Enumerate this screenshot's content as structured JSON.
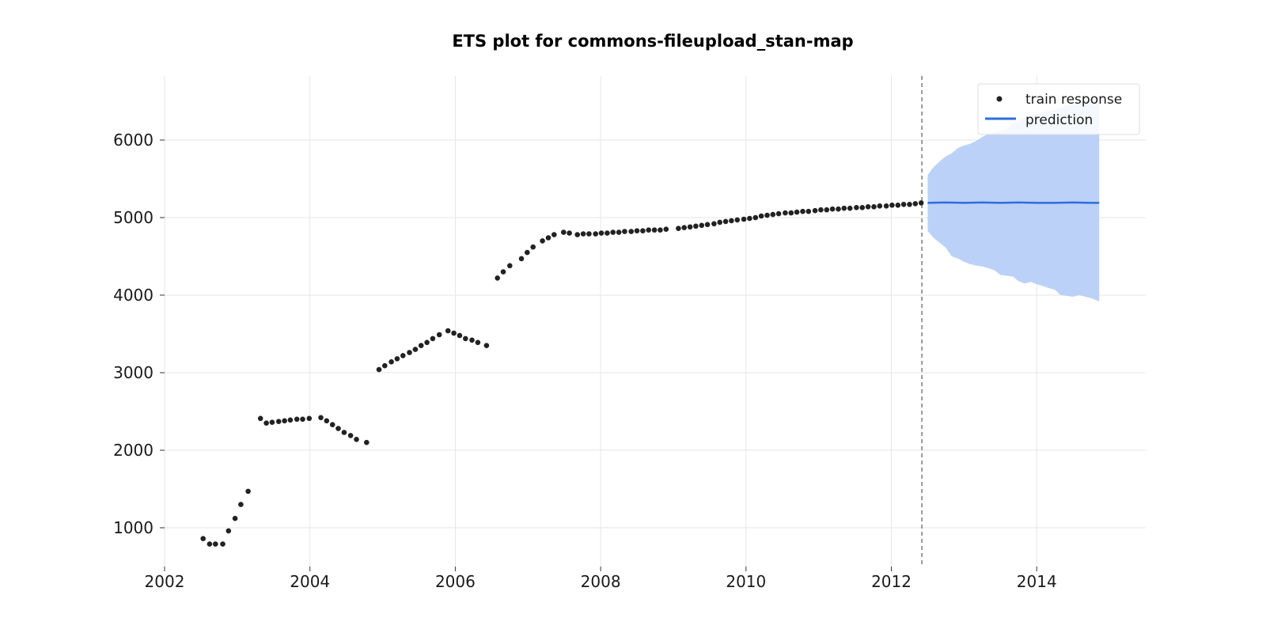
{
  "chart_data": {
    "type": "scatter",
    "title": "ETS plot for commons-fileupload_stan-map",
    "xlabel": "",
    "ylabel": "",
    "xlim": [
      2002.0,
      2015.5
    ],
    "ylim": [
      500,
      6800
    ],
    "x_ticks": [
      "2002",
      "2004",
      "2006",
      "2008",
      "2010",
      "2012",
      "2014"
    ],
    "y_ticks": [
      "1000",
      "2000",
      "3000",
      "4000",
      "5000",
      "6000"
    ],
    "grid": true,
    "legend_position": "top-right",
    "train_end": 2012.42,
    "series": [
      {
        "name": "train response",
        "kind": "scatter",
        "color": "#222222",
        "points": [
          [
            2002.53,
            860
          ],
          [
            2002.62,
            790
          ],
          [
            2002.7,
            790
          ],
          [
            2002.8,
            790
          ],
          [
            2002.88,
            960
          ],
          [
            2002.97,
            1120
          ],
          [
            2003.05,
            1300
          ],
          [
            2003.15,
            1470
          ],
          [
            2003.32,
            2410
          ],
          [
            2003.4,
            2350
          ],
          [
            2003.48,
            2360
          ],
          [
            2003.57,
            2370
          ],
          [
            2003.65,
            2380
          ],
          [
            2003.73,
            2390
          ],
          [
            2003.82,
            2400
          ],
          [
            2003.9,
            2400
          ],
          [
            2003.99,
            2410
          ],
          [
            2004.15,
            2420
          ],
          [
            2004.23,
            2380
          ],
          [
            2004.31,
            2330
          ],
          [
            2004.39,
            2280
          ],
          [
            2004.47,
            2230
          ],
          [
            2004.56,
            2190
          ],
          [
            2004.64,
            2140
          ],
          [
            2004.78,
            2100
          ],
          [
            2004.95,
            3040
          ],
          [
            2005.03,
            3090
          ],
          [
            2005.12,
            3140
          ],
          [
            2005.2,
            3180
          ],
          [
            2005.28,
            3220
          ],
          [
            2005.37,
            3260
          ],
          [
            2005.45,
            3300
          ],
          [
            2005.53,
            3350
          ],
          [
            2005.61,
            3390
          ],
          [
            2005.69,
            3440
          ],
          [
            2005.78,
            3490
          ],
          [
            2005.9,
            3540
          ],
          [
            2005.98,
            3510
          ],
          [
            2006.06,
            3480
          ],
          [
            2006.14,
            3440
          ],
          [
            2006.23,
            3420
          ],
          [
            2006.31,
            3390
          ],
          [
            2006.43,
            3350
          ],
          [
            2006.58,
            4220
          ],
          [
            2006.66,
            4300
          ],
          [
            2006.75,
            4380
          ],
          [
            2006.91,
            4470
          ],
          [
            2006.99,
            4550
          ],
          [
            2007.07,
            4620
          ],
          [
            2007.2,
            4700
          ],
          [
            2007.28,
            4740
          ],
          [
            2007.36,
            4780
          ],
          [
            2007.49,
            4810
          ],
          [
            2007.57,
            4800
          ],
          [
            2007.68,
            4780
          ],
          [
            2007.76,
            4790
          ],
          [
            2007.84,
            4790
          ],
          [
            2007.93,
            4790
          ],
          [
            2008.01,
            4800
          ],
          [
            2008.09,
            4800
          ],
          [
            2008.17,
            4810
          ],
          [
            2008.25,
            4810
          ],
          [
            2008.33,
            4820
          ],
          [
            2008.42,
            4820
          ],
          [
            2008.5,
            4830
          ],
          [
            2008.58,
            4830
          ],
          [
            2008.66,
            4840
          ],
          [
            2008.74,
            4840
          ],
          [
            2008.82,
            4840
          ],
          [
            2008.9,
            4850
          ],
          [
            2009.07,
            4860
          ],
          [
            2009.15,
            4870
          ],
          [
            2009.23,
            4880
          ],
          [
            2009.31,
            4890
          ],
          [
            2009.39,
            4900
          ],
          [
            2009.47,
            4910
          ],
          [
            2009.56,
            4920
          ],
          [
            2009.64,
            4940
          ],
          [
            2009.72,
            4950
          ],
          [
            2009.8,
            4960
          ],
          [
            2009.88,
            4970
          ],
          [
            2009.97,
            4980
          ],
          [
            2010.05,
            4990
          ],
          [
            2010.13,
            5000
          ],
          [
            2010.21,
            5020
          ],
          [
            2010.29,
            5030
          ],
          [
            2010.37,
            5040
          ],
          [
            2010.45,
            5050
          ],
          [
            2010.54,
            5060
          ],
          [
            2010.62,
            5060
          ],
          [
            2010.7,
            5070
          ],
          [
            2010.78,
            5080
          ],
          [
            2010.86,
            5080
          ],
          [
            2010.95,
            5090
          ],
          [
            2011.03,
            5100
          ],
          [
            2011.11,
            5100
          ],
          [
            2011.19,
            5110
          ],
          [
            2011.27,
            5110
          ],
          [
            2011.35,
            5120
          ],
          [
            2011.43,
            5120
          ],
          [
            2011.52,
            5130
          ],
          [
            2011.6,
            5130
          ],
          [
            2011.68,
            5140
          ],
          [
            2011.76,
            5140
          ],
          [
            2011.84,
            5150
          ],
          [
            2011.93,
            5150
          ],
          [
            2012.01,
            5160
          ],
          [
            2012.09,
            5160
          ],
          [
            2012.17,
            5170
          ],
          [
            2012.25,
            5170
          ],
          [
            2012.33,
            5180
          ],
          [
            2012.41,
            5190
          ]
        ]
      },
      {
        "name": "prediction",
        "kind": "line",
        "color": "#2b6fdc",
        "x": [
          2012.5,
          2012.75,
          2013.0,
          2013.25,
          2013.5,
          2013.75,
          2014.0,
          2014.25,
          2014.5,
          2014.75,
          2014.86
        ],
        "y": [
          5190,
          5195,
          5190,
          5195,
          5190,
          5195,
          5190,
          5190,
          5195,
          5190,
          5190
        ]
      },
      {
        "name": "prediction interval",
        "kind": "band",
        "color": "#bcd1f7",
        "x": [
          2012.5,
          2012.58,
          2012.67,
          2012.75,
          2012.83,
          2012.92,
          2013.0,
          2013.08,
          2013.17,
          2013.25,
          2013.33,
          2013.42,
          2013.5,
          2013.58,
          2013.67,
          2013.75,
          2013.83,
          2013.92,
          2014.0,
          2014.08,
          2014.17,
          2014.25,
          2014.33,
          2014.42,
          2014.5,
          2014.58,
          2014.67,
          2014.75,
          2014.86
        ],
        "upper": [
          5550,
          5650,
          5730,
          5790,
          5830,
          5900,
          5930,
          5950,
          5990,
          6040,
          6080,
          6110,
          6120,
          6140,
          6210,
          6260,
          6290,
          6320,
          6340,
          6360,
          6380,
          6390,
          6410,
          6450,
          6470,
          6490,
          6510,
          6530,
          6560
        ],
        "lower": [
          4830,
          4740,
          4670,
          4610,
          4500,
          4470,
          4430,
          4400,
          4380,
          4370,
          4350,
          4320,
          4260,
          4250,
          4240,
          4180,
          4150,
          4170,
          4140,
          4120,
          4090,
          4070,
          4000,
          3990,
          3980,
          4000,
          3980,
          3960,
          3920
        ]
      }
    ]
  }
}
